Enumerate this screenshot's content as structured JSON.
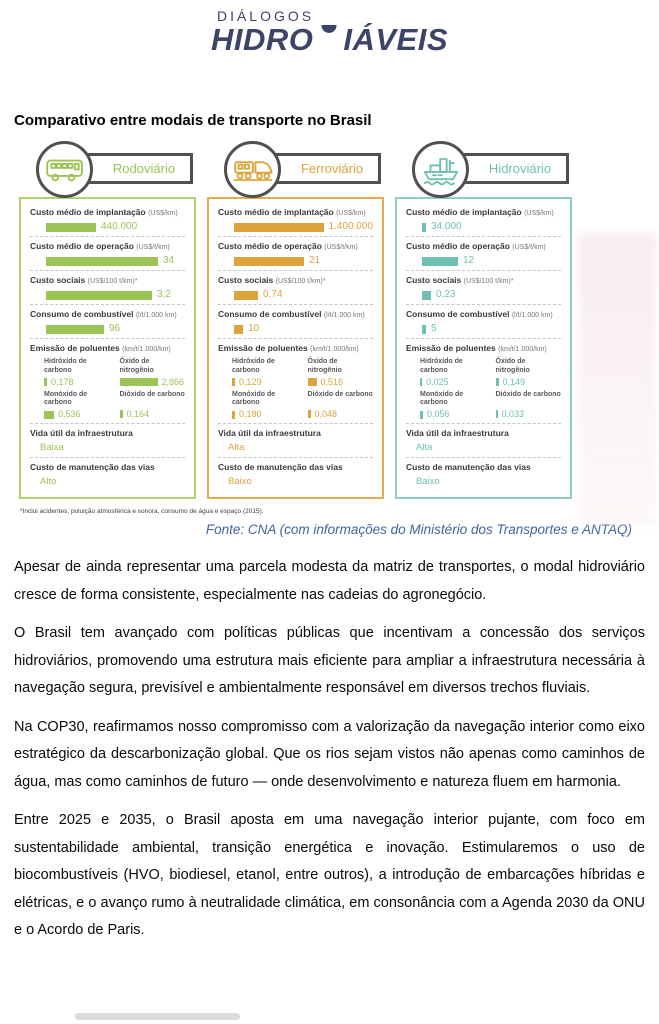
{
  "logo": {
    "top": "DIÁLOGOS",
    "main_left": "HIDRO",
    "main_right": "IÁVEIS"
  },
  "heading": "Comparativo entre modais de transporte no Brasil",
  "colors": {
    "navy": "#3d4566",
    "yellow": "#f0c32b",
    "pill_border": "#4e5052",
    "source_blue": "#44639f"
  },
  "infographic": {
    "cards": [
      {
        "id": "rodoviario",
        "title": "Rodoviário",
        "icon": "bus-icon",
        "color": "#9cc355",
        "border_color": "#b2d06e",
        "metrics": [
          {
            "key": "implantacao",
            "label": "Custo médio de implantação",
            "unit": "(US$/km)",
            "value": "440.000",
            "bar": 50
          },
          {
            "key": "operacao",
            "label": "Custo médio de operação",
            "unit": "(US$/t/km)",
            "value": "34",
            "bar": 112
          },
          {
            "key": "sociais",
            "label": "Custo sociais",
            "unit": "(US$/100 t/km)*",
            "value": "3,2",
            "bar": 106
          },
          {
            "key": "combustivel",
            "label": "Consumo de combustível",
            "unit": "(l/t/1.000 km)",
            "value": "96",
            "bar": 58
          }
        ],
        "emissions": {
          "label": "Emissão de poluentes",
          "unit": "(km/t/1.000/km)",
          "items": [
            {
              "key": "hidroxido-carbono",
              "name": "Hidróxido de carbono",
              "value": "0,178",
              "bar": 3
            },
            {
              "key": "oxido-nitrogenio",
              "name": "Óxido de nitrogênio",
              "value": "2,866",
              "bar": 38
            },
            {
              "key": "monoxido-carbono",
              "name": "Monóxido de carbono",
              "value": "0,536",
              "bar": 10
            },
            {
              "key": "dioxido-carbono",
              "name": "Dióxido de carbono",
              "value": "0,164",
              "bar": 3
            }
          ]
        },
        "extra": [
          {
            "key": "vida-util",
            "label": "Vida útil da infraestrutura",
            "value": "Baixa"
          },
          {
            "key": "manutencao",
            "label": "Custo de manutenção das vias",
            "value": "Alto"
          }
        ]
      },
      {
        "id": "ferroviario",
        "title": "Ferroviário",
        "icon": "train-icon",
        "color": "#dda43c",
        "border_color": "#e2ac52",
        "metrics": [
          {
            "key": "implantacao",
            "label": "Custo médio de implantação",
            "unit": "(US$/km)",
            "value": "1.400.000",
            "bar": 108
          },
          {
            "key": "operacao",
            "label": "Custo médio de operação",
            "unit": "(US$/t/km)",
            "value": "21",
            "bar": 70
          },
          {
            "key": "sociais",
            "label": "Custo sociais",
            "unit": "(US$/100 t/km)*",
            "value": "0,74",
            "bar": 24
          },
          {
            "key": "combustivel",
            "label": "Consumo de combustível",
            "unit": "(l/t/1.000 km)",
            "value": "10",
            "bar": 9
          }
        ],
        "emissions": {
          "label": "Emissão de poluentes",
          "unit": "(km/t/1.000/km)",
          "items": [
            {
              "key": "hidroxido-carbono",
              "name": "Hidróxido de carbono",
              "value": "0,129",
              "bar": 3
            },
            {
              "key": "oxido-nitrogenio",
              "name": "Óxido de nitrogênio",
              "value": "0,516",
              "bar": 9
            },
            {
              "key": "monoxido-carbono",
              "name": "Monóxido de carbono",
              "value": "0,180",
              "bar": 3
            },
            {
              "key": "dioxido-carbono",
              "name": "Dióxido de carbono",
              "value": "0,048",
              "bar": 3
            }
          ]
        },
        "extra": [
          {
            "key": "vida-util",
            "label": "Vida útil da infraestrutura",
            "value": "Alta"
          },
          {
            "key": "manutencao",
            "label": "Custo de manutenção das vias",
            "value": "Baixo"
          }
        ]
      },
      {
        "id": "hidroviario",
        "title": "Hidroviário",
        "icon": "ship-icon",
        "color": "#6fbfb2",
        "border_color": "#8fccc1",
        "metrics": [
          {
            "key": "implantacao",
            "label": "Custo médio de implantação",
            "unit": "(US$/km)",
            "value": "34.000",
            "bar": 4
          },
          {
            "key": "operacao",
            "label": "Custo médio de operação",
            "unit": "(US$/t/km)",
            "value": "12",
            "bar": 36
          },
          {
            "key": "sociais",
            "label": "Custo sociais",
            "unit": "(US$/100 t/km)*",
            "value": "0,23",
            "bar": 9
          },
          {
            "key": "combustivel",
            "label": "Consumo de combustível",
            "unit": "(l/t/1.000 km)",
            "value": "5",
            "bar": 4
          }
        ],
        "emissions": {
          "label": "Emissão de poluentes",
          "unit": "(km/t/1.000/km)",
          "items": [
            {
              "key": "hidroxido-carbono",
              "name": "Hidróxido de carbono",
              "value": "0,025",
              "bar": 2
            },
            {
              "key": "oxido-nitrogenio",
              "name": "Óxido de nitrogênio",
              "value": "0,149",
              "bar": 3
            },
            {
              "key": "monoxido-carbono",
              "name": "Monóxido de carbono",
              "value": "0,056",
              "bar": 3
            },
            {
              "key": "dioxido-carbono",
              "name": "Dióxido de carbono",
              "value": "0,033",
              "bar": 2
            }
          ]
        },
        "extra": [
          {
            "key": "vida-util",
            "label": "Vida útil da infraestrutura",
            "value": "Alta"
          },
          {
            "key": "manutencao",
            "label": "Custo de manutenção das vias",
            "value": "Baixo"
          }
        ]
      }
    ],
    "footnote": "*Inclui acidentes, poluição atmosférica e sonora, consumo de água e espaço (2015).",
    "source": "Fonte: CNA (com informações do Ministério dos Transportes e ANTAQ)"
  },
  "paragraphs": [
    "Apesar de ainda representar uma parcela modesta da matriz de transportes, o modal hidroviário cresce de forma consistente, especialmente nas cadeias do agronegócio.",
    "O Brasil tem avançado com políticas públicas que incentivam a concessão dos serviços hidroviários, promovendo uma estrutura mais eficiente para ampliar a infraestrutura necessária à navegação segura, previsível e ambientalmente responsável em diversos trechos fluviais.",
    "Na COP30, reafirmamos nosso compromisso com a valorização da navegação interior como eixo estratégico da descarbonização global. Que os rios sejam vistos não apenas como caminhos de água, mas como caminhos de futuro — onde desenvolvimento e natureza fluem em harmonia.",
    "Entre 2025 e 2035, o Brasil aposta em uma navegação interior pujante, com foco em sustentabilidade ambiental, transição energética e inovação. Estimularemos o uso de biocombustíveis (HVO, biodiesel, etanol, entre outros), a introdução de embarcações híbridas e elétricas, e o avanço rumo à neutralidade climática, em consonância com a Agenda 2030 da ONU e o Acordo de Paris."
  ]
}
